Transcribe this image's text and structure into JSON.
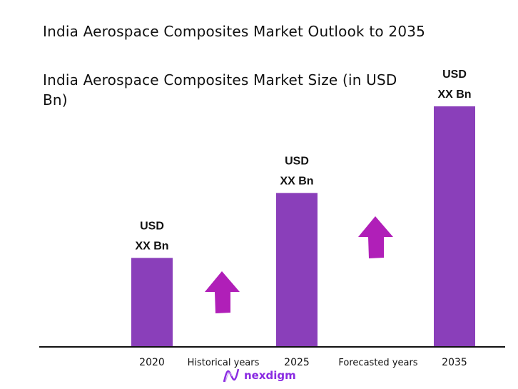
{
  "chart_data": {
    "type": "bar",
    "title": "India Aerospace Composites Market Outlook to 2035",
    "subtitle": " India Aerospace Composites Market Size (in USD Bn)",
    "categories": [
      "2020",
      "2025",
      "2035"
    ],
    "relative_values": [
      0.37,
      0.64,
      1.0
    ],
    "data_labels": [
      {
        "line1": "USD",
        "line2": "XX Bn"
      },
      {
        "line1": "USD",
        "line2": "XX Bn"
      },
      {
        "line1": "USD",
        "line2": "XX Bn"
      }
    ],
    "period_labels": [
      "Historical years",
      "Forecasted years"
    ],
    "grid": false,
    "legend": "none",
    "colors": {
      "bar": "#8a3fba",
      "arrow": "#b01fb8",
      "axis": "#111111"
    }
  },
  "logo": {
    "text": "nexdigm",
    "color": "#8a2be2"
  }
}
